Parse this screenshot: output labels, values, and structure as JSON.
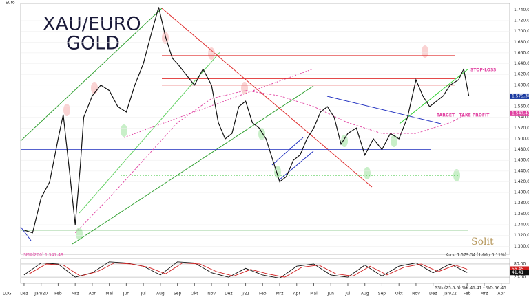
{
  "chart_data": [
    {
      "type": "line",
      "title": "XAU/EURO",
      "subtitle": "GOLD",
      "y_label": "Euro",
      "scale_label": "LOG",
      "quote": "Kurs: 1.579,34 (1,66 / 0,11%)",
      "sma_label": "SMA(200) 1.547,48",
      "logo": "Solit",
      "stop_loss": "STOP-LOSS",
      "target": "TARGET - TAKE PROFIT",
      "xlim": [
        -0.2,
        28.5
      ],
      "xticks": [
        {
          "value": 0,
          "label": "Dez"
        },
        {
          "value": 1,
          "label": "Jan/20"
        },
        {
          "value": 2,
          "label": "Feb"
        },
        {
          "value": 3,
          "label": "Mrz"
        },
        {
          "value": 4,
          "label": "Apr"
        },
        {
          "value": 5,
          "label": "Mai"
        },
        {
          "value": 6,
          "label": "Jun"
        },
        {
          "value": 7,
          "label": "Jul"
        },
        {
          "value": 8,
          "label": "Aug"
        },
        {
          "value": 9,
          "label": "Sep"
        },
        {
          "value": 10,
          "label": "Okt"
        },
        {
          "value": 11,
          "label": "Nov"
        },
        {
          "value": 12,
          "label": "Dez"
        },
        {
          "value": 13,
          "label": "J/21"
        },
        {
          "value": 14,
          "label": "Feb"
        },
        {
          "value": 15,
          "label": "Mrz"
        },
        {
          "value": 16,
          "label": "Apr"
        },
        {
          "value": 17,
          "label": "Mai"
        },
        {
          "value": 18,
          "label": "Jun"
        },
        {
          "value": 19,
          "label": "Jul"
        },
        {
          "value": 20,
          "label": "Aug"
        },
        {
          "value": 21,
          "label": "Sep"
        },
        {
          "value": 22,
          "label": "Okt"
        },
        {
          "value": 23,
          "label": "Nov"
        },
        {
          "value": 24,
          "label": "Dez"
        },
        {
          "value": 25,
          "label": "Jan/22"
        },
        {
          "value": 26,
          "label": "Feb"
        },
        {
          "value": 27,
          "label": "Mrz"
        },
        {
          "value": 28,
          "label": "Apr"
        }
      ],
      "ylim": [
        1285,
        1752
      ],
      "yticks": [
        {
          "value": 1300,
          "label": "1.300,00"
        },
        {
          "value": 1320,
          "label": "1.320,00"
        },
        {
          "value": 1340,
          "label": "1.340,00"
        },
        {
          "value": 1360,
          "label": "1.360,00"
        },
        {
          "value": 1380,
          "label": "1.380,00"
        },
        {
          "value": 1400,
          "label": "1.400,00"
        },
        {
          "value": 1420,
          "label": "1.420,00"
        },
        {
          "value": 1440,
          "label": "1.440,00"
        },
        {
          "value": 1460,
          "label": "1.460,00"
        },
        {
          "value": 1480,
          "label": "1.480,00"
        },
        {
          "value": 1500,
          "label": "1.500,00"
        },
        {
          "value": 1520,
          "label": "1.520,00"
        },
        {
          "value": 1540,
          "label": "1.540,00"
        },
        {
          "value": 1560,
          "label": "1.560,00"
        },
        {
          "value": 1580,
          "label": "1.580,00"
        },
        {
          "value": 1600,
          "label": "1.600,00"
        },
        {
          "value": 1620,
          "label": "1.620,00"
        },
        {
          "value": 1640,
          "label": "1.640,00"
        },
        {
          "value": 1660,
          "label": "1.660,00"
        },
        {
          "value": 1680,
          "label": "1.680,00"
        },
        {
          "value": 1700,
          "label": "1.700,00"
        },
        {
          "value": 1720,
          "label": "1.720,00"
        },
        {
          "value": 1740,
          "label": "1.740,00"
        }
      ],
      "levels": [
        {
          "value": 1740,
          "color": "#e03030"
        },
        {
          "value": 1655,
          "color": "#e03030"
        },
        {
          "value": 1612,
          "color": "#e03030"
        },
        {
          "value": 1600,
          "color": "#e03030"
        },
        {
          "value": 1498,
          "color": "#30c030"
        },
        {
          "value": 1480,
          "color": "#2030c0"
        },
        {
          "value": 1330,
          "color": "#30a030"
        }
      ],
      "last_badges": [
        {
          "value": 1579.34,
          "label": "1.579,34",
          "color": "#1a3aa0"
        },
        {
          "value": 1547.48,
          "label": "1.547,48",
          "color": "#e040a0"
        }
      ],
      "series": [
        {
          "color": "#111111",
          "x": [
            0,
            0.5,
            1,
            1.5,
            2,
            2.3,
            2.7,
            3,
            3.3,
            3.5,
            4,
            4.5,
            5,
            5.5,
            6,
            6.5,
            7,
            7.5,
            7.9,
            8.3,
            8.7,
            9,
            9.5,
            10,
            10.5,
            11,
            11.4,
            11.8,
            12.2,
            12.6,
            13,
            13.4,
            13.8,
            14.2,
            14.6,
            15,
            15.4,
            15.8,
            16.2,
            16.6,
            17,
            17.4,
            17.8,
            18.2,
            18.6,
            19,
            19.5,
            20,
            20.5,
            21,
            21.5,
            22,
            22.5,
            23,
            23.4,
            23.8,
            24.2,
            24.6,
            25,
            25.5,
            25.8,
            26.1
          ],
          "values": [
            1330,
            1325,
            1390,
            1420,
            1500,
            1545,
            1430,
            1340,
            1450,
            1540,
            1580,
            1600,
            1590,
            1560,
            1550,
            1600,
            1640,
            1700,
            1745,
            1690,
            1650,
            1640,
            1620,
            1600,
            1630,
            1600,
            1530,
            1500,
            1510,
            1560,
            1570,
            1530,
            1520,
            1500,
            1460,
            1420,
            1430,
            1460,
            1470,
            1500,
            1520,
            1550,
            1560,
            1540,
            1490,
            1510,
            1520,
            1470,
            1500,
            1480,
            1510,
            1500,
            1540,
            1610,
            1580,
            1560,
            1570,
            1580,
            1600,
            1610,
            1630,
            1580
          ]
        },
        {
          "color": "#e040a0",
          "x": [
            3,
            5,
            7,
            9,
            11,
            13,
            15,
            17,
            19,
            21,
            23,
            25,
            26.1
          ],
          "values": [
            1325,
            1390,
            1460,
            1530,
            1575,
            1590,
            1580,
            1560,
            1530,
            1510,
            1510,
            1530,
            1547.48
          ]
        }
      ]
    },
    {
      "type": "line",
      "title": "SSto(25,5,5) %K:41,41 - %D:56,45",
      "ylim": [
        -8,
        105
      ],
      "yticks": [
        {
          "value": 80,
          "label": "80,00"
        },
        {
          "value": 20,
          "label": "20,00"
        }
      ],
      "last_badges": [
        {
          "value": 56.45,
          "label": "56,45",
          "color": "#d02020"
        },
        {
          "value": 41.41,
          "label": "41,41",
          "color": "#111111"
        }
      ],
      "series": [
        {
          "color": "#111111",
          "x": [
            0,
            1,
            2,
            3,
            4,
            5,
            6,
            7,
            8,
            9,
            10,
            11,
            12,
            13,
            14,
            15,
            16,
            17,
            18,
            19,
            20,
            21,
            22,
            23,
            24,
            25,
            26
          ],
          "values": [
            30,
            85,
            80,
            20,
            40,
            90,
            85,
            70,
            30,
            90,
            85,
            40,
            20,
            60,
            30,
            15,
            70,
            80,
            30,
            20,
            75,
            25,
            70,
            85,
            40,
            80,
            41.41
          ]
        },
        {
          "color": "#d02020",
          "x": [
            0.3,
            1.3,
            2.3,
            3.3,
            4.3,
            5.3,
            6.3,
            7.3,
            8.3,
            9.3,
            10.3,
            11.3,
            12.3,
            13.3,
            14.3,
            15.3,
            16.3,
            17.3,
            18.3,
            19.3,
            20.3,
            21.3,
            22.3,
            23.3,
            24.3,
            25.3,
            26
          ],
          "values": [
            35,
            80,
            75,
            25,
            45,
            85,
            80,
            65,
            35,
            85,
            80,
            45,
            25,
            55,
            35,
            20,
            65,
            75,
            35,
            25,
            70,
            30,
            65,
            80,
            45,
            75,
            56.45
          ]
        }
      ]
    }
  ]
}
